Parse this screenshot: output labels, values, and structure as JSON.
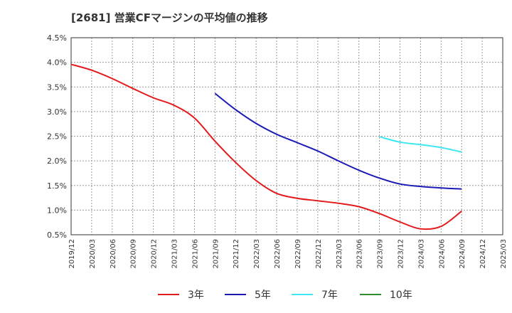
{
  "chart_data": {
    "type": "line",
    "title": "[2681]  営業CFマージンの平均値の推移",
    "xlabel": "",
    "ylabel": "",
    "ylim": [
      0.5,
      4.5
    ],
    "y_ticks": [
      "0.5%",
      "1.0%",
      "1.5%",
      "2.0%",
      "2.5%",
      "3.0%",
      "3.5%",
      "4.0%",
      "4.5%"
    ],
    "x_categories": [
      "2019/12",
      "2020/03",
      "2020/06",
      "2020/09",
      "2020/12",
      "2021/03",
      "2021/06",
      "2021/09",
      "2021/12",
      "2022/03",
      "2022/06",
      "2022/09",
      "2022/12",
      "2023/03",
      "2023/06",
      "2023/09",
      "2023/12",
      "2024/03",
      "2024/06",
      "2024/09",
      "2024/12",
      "2025/03"
    ],
    "grid": true,
    "legend_position": "bottom",
    "series": [
      {
        "name": "3年",
        "color": "#e31a1c",
        "points": [
          [
            "2019/12",
            3.96
          ],
          [
            "2020/03",
            3.84
          ],
          [
            "2020/06",
            3.67
          ],
          [
            "2020/09",
            3.47
          ],
          [
            "2020/12",
            3.28
          ],
          [
            "2021/03",
            3.13
          ],
          [
            "2021/06",
            2.87
          ],
          [
            "2021/09",
            2.4
          ],
          [
            "2021/12",
            1.97
          ],
          [
            "2022/03",
            1.6
          ],
          [
            "2022/06",
            1.34
          ],
          [
            "2022/09",
            1.24
          ],
          [
            "2022/12",
            1.19
          ],
          [
            "2023/03",
            1.14
          ],
          [
            "2023/06",
            1.07
          ],
          [
            "2023/09",
            0.93
          ],
          [
            "2023/12",
            0.76
          ],
          [
            "2024/03",
            0.62
          ],
          [
            "2024/06",
            0.67
          ],
          [
            "2024/09",
            0.98
          ]
        ]
      },
      {
        "name": "5年",
        "color": "#1a1ab4",
        "points": [
          [
            "2021/09",
            3.37
          ],
          [
            "2021/12",
            3.04
          ],
          [
            "2022/03",
            2.76
          ],
          [
            "2022/06",
            2.54
          ],
          [
            "2022/09",
            2.37
          ],
          [
            "2022/12",
            2.2
          ],
          [
            "2023/03",
            2.0
          ],
          [
            "2023/06",
            1.81
          ],
          [
            "2023/09",
            1.65
          ],
          [
            "2023/12",
            1.53
          ],
          [
            "2024/03",
            1.48
          ],
          [
            "2024/06",
            1.45
          ],
          [
            "2024/09",
            1.43
          ]
        ]
      },
      {
        "name": "7年",
        "color": "#3de6f0",
        "points": [
          [
            "2023/09",
            2.49
          ],
          [
            "2023/12",
            2.38
          ],
          [
            "2024/03",
            2.33
          ],
          [
            "2024/06",
            2.27
          ],
          [
            "2024/09",
            2.18
          ]
        ]
      },
      {
        "name": "10年",
        "color": "#2e8b2e",
        "points": []
      }
    ]
  }
}
